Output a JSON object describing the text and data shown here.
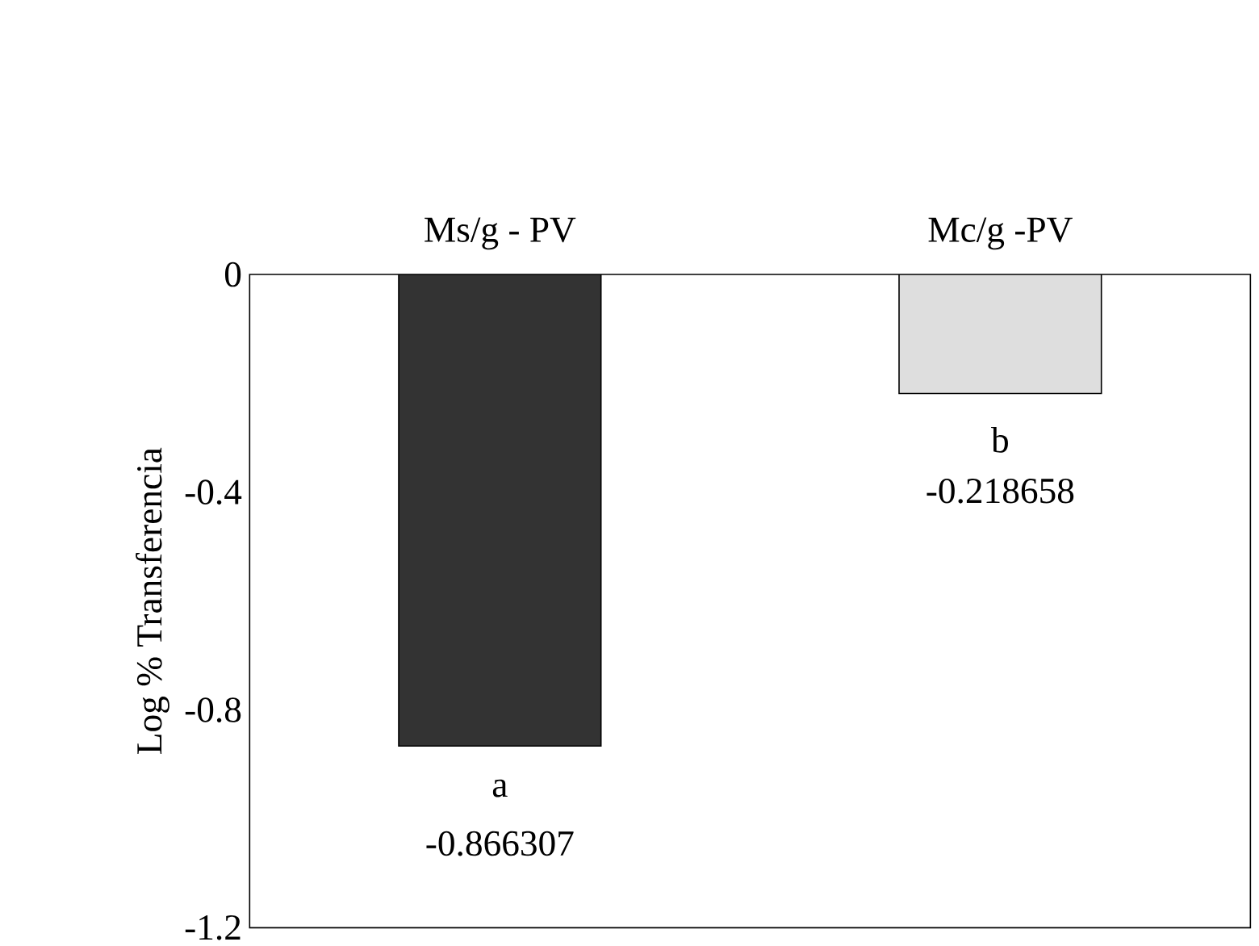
{
  "chart_data": {
    "type": "bar",
    "ylabel": "Log % Transferencia",
    "categories": [
      "Ms/g - PV",
      "Mc/g -PV"
    ],
    "values": [
      -0.866307,
      -0.218658
    ],
    "colors": [
      "#333333",
      "#dedede"
    ],
    "ylim": [
      -1.2,
      0
    ],
    "yticks": [
      0,
      -0.4,
      -0.8,
      -1.2
    ],
    "data_labels": true,
    "annotations": [
      {
        "text": "a",
        "x": "Ms/g - PV",
        "y": -0.866307
      },
      {
        "text": "b",
        "x": "Mc/g -PV",
        "y": -0.218658
      }
    ]
  }
}
